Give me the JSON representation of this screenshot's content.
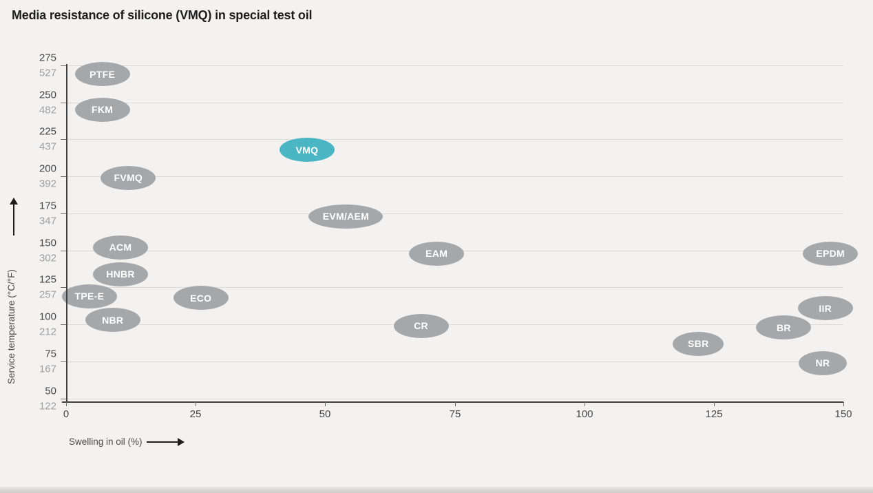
{
  "title": "Media resistance of silicone (VMQ) in special test oil",
  "colors": {
    "background": "#f3f2f1",
    "bubble": "#a5a8ab",
    "bubble_text": "#ffffff",
    "highlight": "#4ab6c4",
    "axis": "#3c3e40",
    "grid": "#dbdad9",
    "tick_label_c": "#44474a",
    "tick_label_f": "#9b9fa2"
  },
  "chart_data": {
    "type": "scatter",
    "title": "Media resistance of silicone (VMQ) in special test oil",
    "xlabel": "Swelling in oil (%)",
    "ylabel": "Service temperature (°C/°F)",
    "xlim": [
      0,
      150
    ],
    "x_ticks": [
      0,
      25,
      50,
      75,
      100,
      125,
      150
    ],
    "ylim_c": [
      48,
      275
    ],
    "y_ticks": [
      {
        "c": "275",
        "f": "527"
      },
      {
        "c": "250",
        "f": "482"
      },
      {
        "c": "225",
        "f": "437"
      },
      {
        "c": "200",
        "f": "392"
      },
      {
        "c": "175",
        "f": "347"
      },
      {
        "c": "150",
        "f": "302"
      },
      {
        "c": "125",
        "f": "257"
      },
      {
        "c": "100",
        "f": "212"
      },
      {
        "c": "75",
        "f": "167"
      },
      {
        "c": "50",
        "f": "122"
      }
    ],
    "grid": "horizontal",
    "legend": "none",
    "highlighted_point": "VMQ",
    "points": [
      {
        "label": "PTFE",
        "swelling_pct": 7,
        "temp_c": 269
      },
      {
        "label": "FKM",
        "swelling_pct": 7,
        "temp_c": 245
      },
      {
        "label": "VMQ",
        "swelling_pct": 46.5,
        "temp_c": 218,
        "highlight": true
      },
      {
        "label": "FVMQ",
        "swelling_pct": 12,
        "temp_c": 199
      },
      {
        "label": "EVM/AEM",
        "swelling_pct": 54,
        "temp_c": 173,
        "w": 108
      },
      {
        "label": "ACM",
        "swelling_pct": 10.5,
        "temp_c": 152
      },
      {
        "label": "EAM",
        "swelling_pct": 71.5,
        "temp_c": 148
      },
      {
        "label": "EPDM",
        "swelling_pct": 147.5,
        "temp_c": 148
      },
      {
        "label": "HNBR",
        "swelling_pct": 10.5,
        "temp_c": 134
      },
      {
        "label": "TPE-E",
        "swelling_pct": 4.5,
        "temp_c": 119
      },
      {
        "label": "ECO",
        "swelling_pct": 26,
        "temp_c": 118
      },
      {
        "label": "IIR",
        "swelling_pct": 146.5,
        "temp_c": 111
      },
      {
        "label": "NBR",
        "swelling_pct": 9,
        "temp_c": 103
      },
      {
        "label": "CR",
        "swelling_pct": 68.5,
        "temp_c": 99
      },
      {
        "label": "BR",
        "swelling_pct": 138.5,
        "temp_c": 98
      },
      {
        "label": "SBR",
        "swelling_pct": 122,
        "temp_c": 87,
        "w": 74
      },
      {
        "label": "NR",
        "swelling_pct": 146,
        "temp_c": 74,
        "w": 70
      }
    ]
  }
}
